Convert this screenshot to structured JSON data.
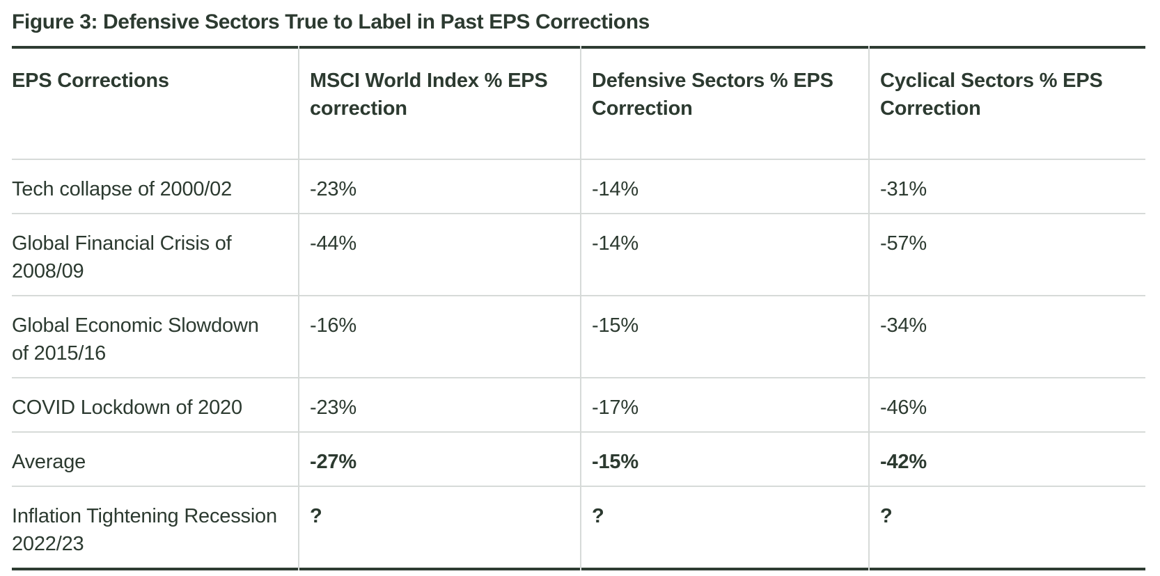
{
  "title": "Figure 3: Defensive Sectors True to Label in Past EPS Corrections",
  "chart_data": {
    "type": "table",
    "title": "Figure 3: Defensive Sectors True to Label in Past EPS Corrections",
    "columns": [
      "EPS Corrections",
      "MSCI World Index % EPS correction",
      "Defensive Sectors % EPS Correction",
      "Cyclical Sectors % EPS Correction"
    ],
    "rows": [
      {
        "cells": [
          "Tech collapse of 2000/02",
          "-23%",
          "-14%",
          "-31%"
        ],
        "values_bold": false
      },
      {
        "cells": [
          "Global Financial Crisis of 2008/09",
          "-44%",
          "-14%",
          "-57%"
        ],
        "values_bold": false
      },
      {
        "cells": [
          "Global Economic Slowdown of 2015/16",
          "-16%",
          "-15%",
          "-34%"
        ],
        "values_bold": false
      },
      {
        "cells": [
          "COVID Lockdown of 2020",
          "-23%",
          "-17%",
          "-46%"
        ],
        "values_bold": false
      },
      {
        "cells": [
          "Average",
          "-27%",
          "-15%",
          "-42%"
        ],
        "values_bold": true
      },
      {
        "cells": [
          "Inflation Tightening Recession 2022/23",
          "?",
          "?",
          "?"
        ],
        "values_bold": true
      }
    ]
  },
  "colors": {
    "text": "#2c3a30",
    "border": "#2e3c32",
    "grid": "#d6dad8",
    "background": "#ffffff"
  }
}
